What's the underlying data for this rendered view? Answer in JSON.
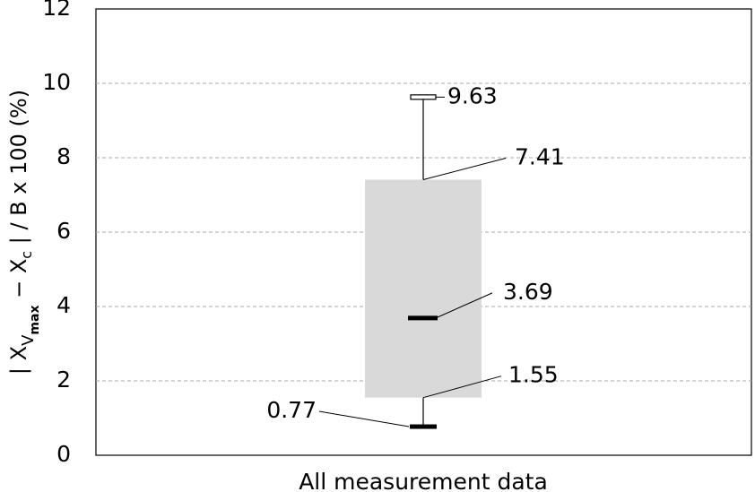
{
  "chart_data": {
    "type": "box",
    "ylabel": [
      "| X",
      "V",
      "max",
      "  − X",
      "c",
      "  |  / B x 100 (%)"
    ],
    "categories": [
      "All measurement data"
    ],
    "boxes": [
      {
        "min": 0.77,
        "q1": 1.55,
        "median": 3.69,
        "q3": 7.41,
        "max": 9.63
      }
    ],
    "color": "#d9d9d9",
    "ylim": [
      0,
      12
    ],
    "yticks": [
      0,
      2,
      4,
      6,
      8,
      10,
      12
    ],
    "grid": true
  }
}
